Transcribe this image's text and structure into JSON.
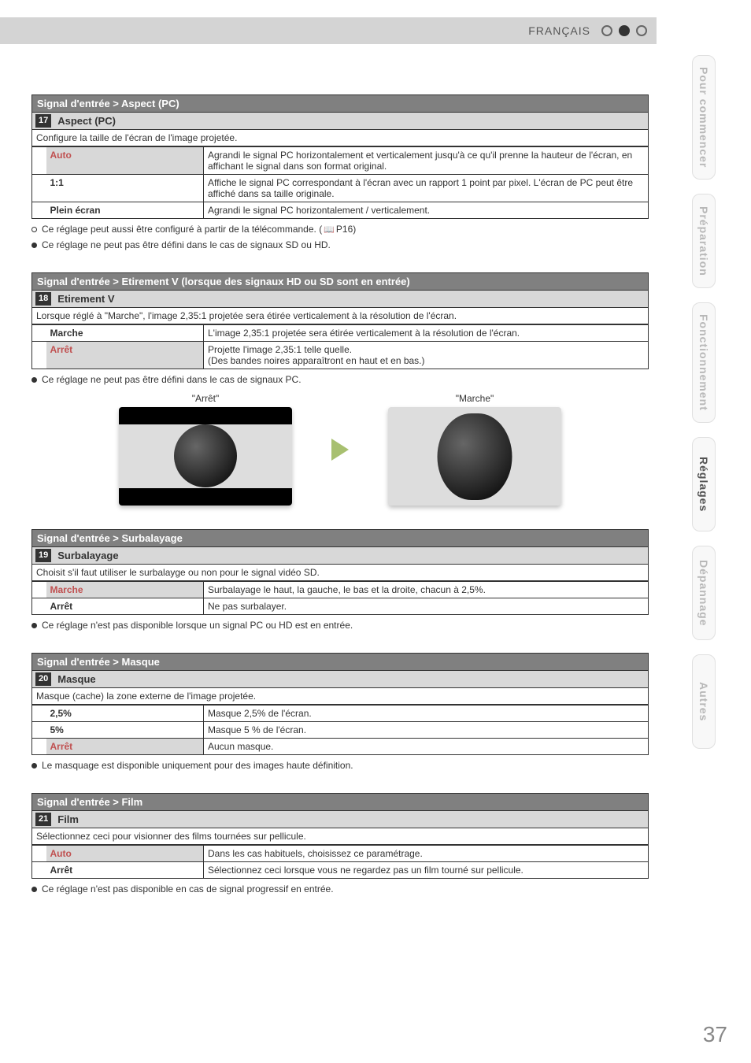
{
  "header": {
    "language": "FRANÇAIS"
  },
  "sideTabs": {
    "t1": "Pour commencer",
    "t2": "Préparation",
    "t3": "Fonctionnement",
    "t4": "Réglages",
    "t5": "Dépannage",
    "t6": "Autres"
  },
  "pageNumber": "37",
  "s1": {
    "title": "Signal d'entrée > Aspect (PC)",
    "num": "17",
    "name": "Aspect (PC)",
    "desc": "Configure la taille de l'écran de l'image projetée.",
    "r1k": "Auto",
    "r1v": "Agrandi le signal PC horizontalement et verticalement jusqu'à ce qu'il prenne la hauteur de l'écran, en affichant le signal dans son format original.",
    "r2k": "1:1",
    "r2v": "Affiche le signal PC correspondant à l'écran avec un rapport 1 point par pixel. L'écran de PC peut être affiché dans sa taille originale.",
    "r3k": "Plein écran",
    "r3v": "Agrandi le signal PC horizontalement / verticalement.",
    "note1a": "Ce réglage peut aussi être configuré à partir de la télécommande. (",
    "note1b": "P16)",
    "note2": "Ce réglage ne peut pas être défini dans le cas de signaux SD ou HD."
  },
  "s2": {
    "title": "Signal d'entrée > Etirement V (lorsque des signaux HD ou SD sont en entrée)",
    "num": "18",
    "name": "Etirement V",
    "desc": "Lorsque réglé à \"Marche\", l'image 2,35:1 projetée sera étirée verticalement à la résolution de l'écran.",
    "r1k": "Marche",
    "r1v": "L'image 2,35:1 projetée sera étirée verticalement à la résolution de l'écran.",
    "r2k": "Arrêt",
    "r2v": "Projette l'image 2,35:1 telle quelle.\n(Des bandes noires apparaîtront en haut et en bas.)",
    "note1": "Ce réglage ne peut pas être défini dans le cas de signaux PC.",
    "illus_left": "\"Arrêt\"",
    "illus_right": "\"Marche\""
  },
  "s3": {
    "title": "Signal d'entrée > Surbalayage",
    "num": "19",
    "name": "Surbalayage",
    "desc": "Choisit s'il faut utiliser le surbalayge ou non pour le signal vidéo SD.",
    "r1k": "Marche",
    "r1v": "Surbalayage le haut, la gauche, le bas et la droite, chacun à 2,5%.",
    "r2k": "Arrêt",
    "r2v": "Ne pas surbalayer.",
    "note1": "Ce réglage n'est pas disponible lorsque un signal PC ou HD est en entrée."
  },
  "s4": {
    "title": "Signal d'entrée > Masque",
    "num": "20",
    "name": "Masque",
    "desc": "Masque (cache) la zone externe de l'image projetée.",
    "r1k": "2,5%",
    "r1v": "Masque 2,5% de l'écran.",
    "r2k": "5%",
    "r2v": "Masque 5 % de l'écran.",
    "r3k": "Arrêt",
    "r3v": "Aucun masque.",
    "note1": "Le masquage est disponible uniquement pour des images haute définition."
  },
  "s5": {
    "title": "Signal d'entrée > Film",
    "num": "21",
    "name": "Film",
    "desc": "Sélectionnez ceci pour visionner des films tournées sur pellicule.",
    "r1k": "Auto",
    "r1v": "Dans les cas habituels, choisissez ce paramétrage.",
    "r2k": "Arrêt",
    "r2v": "Sélectionnez ceci lorsque vous ne regardez pas un film tourné sur pellicule.",
    "note1": "Ce réglage n'est pas disponible en cas de signal progressif en entrée."
  }
}
